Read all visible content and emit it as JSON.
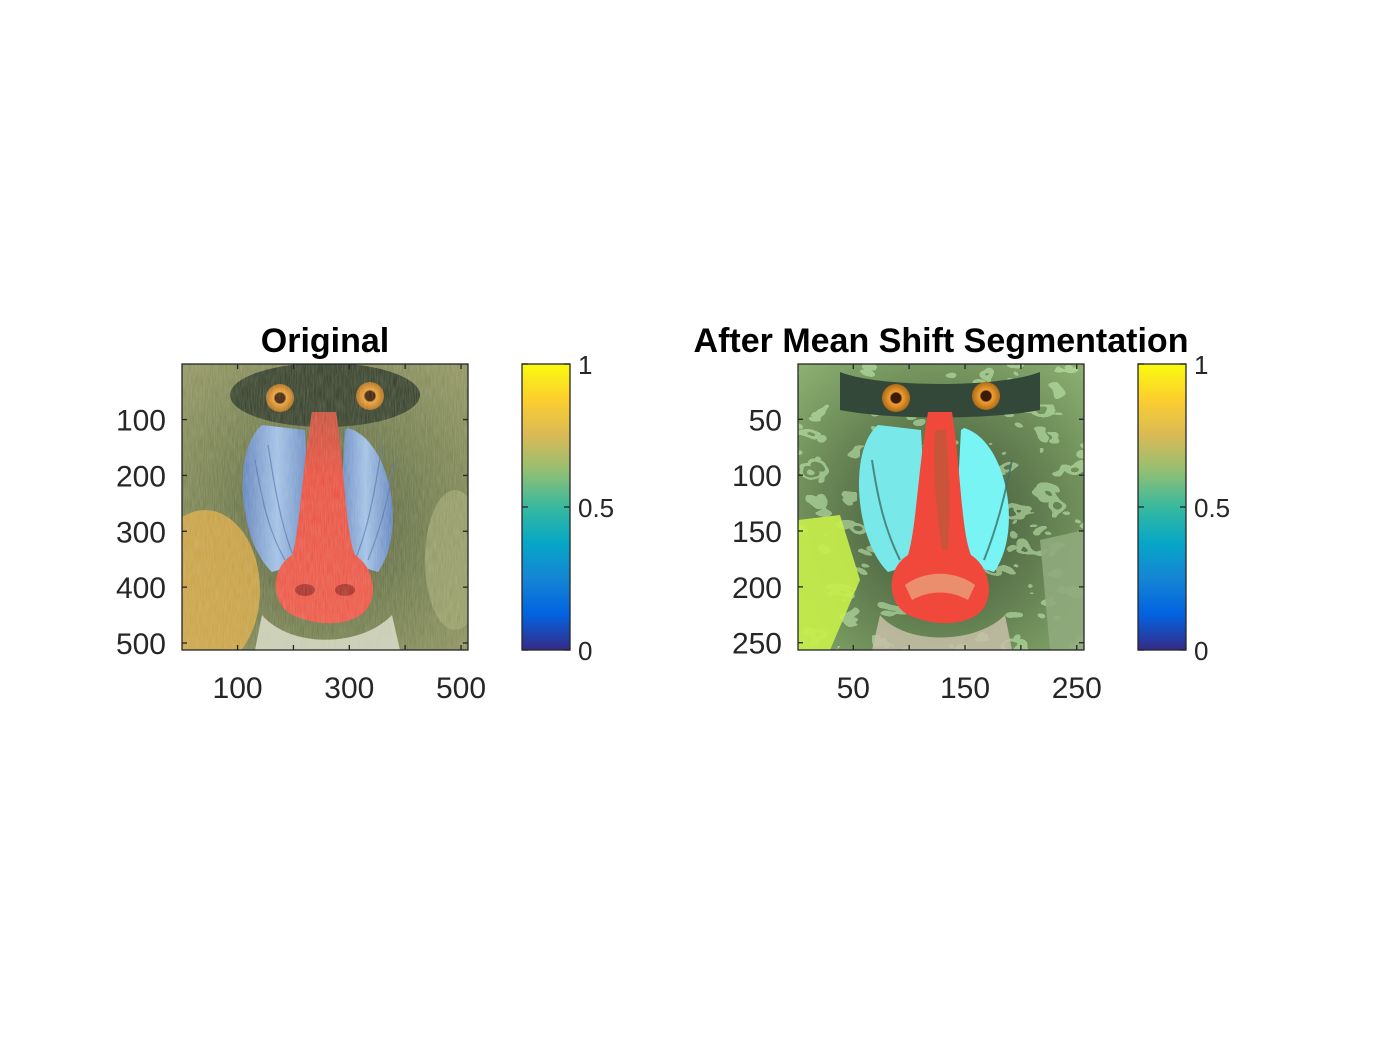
{
  "figure": {
    "background": "#ffffff"
  },
  "chart_data": [
    {
      "type": "heatmap",
      "title": "Original",
      "image": "mandrill",
      "xlim": [
        1,
        512
      ],
      "ylim": [
        1,
        512
      ],
      "y_reversed": true,
      "x_ticks": [
        100,
        200,
        300,
        400,
        500
      ],
      "x_tick_labels": [
        "100",
        "",
        "300",
        "",
        "500"
      ],
      "y_ticks": [
        100,
        200,
        300,
        400,
        500
      ],
      "y_tick_labels": [
        "100",
        "200",
        "300",
        "400",
        "500"
      ],
      "colorbar": {
        "colormap": "parula",
        "range": [
          0,
          1
        ],
        "ticks": [
          0,
          0.5,
          1
        ],
        "tick_labels": [
          "0",
          "0.5",
          "1"
        ]
      }
    },
    {
      "type": "heatmap",
      "title": "After Mean Shift Segmentation",
      "image": "mandrill-segmented",
      "xlim": [
        1,
        256
      ],
      "ylim": [
        1,
        256
      ],
      "y_reversed": true,
      "x_ticks": [
        50,
        100,
        150,
        200,
        250
      ],
      "x_tick_labels": [
        "50",
        "",
        "150",
        "",
        "250"
      ],
      "y_ticks": [
        50,
        100,
        150,
        200,
        250
      ],
      "y_tick_labels": [
        "50",
        "100",
        "150",
        "200",
        "250"
      ],
      "colorbar": {
        "colormap": "parula",
        "range": [
          0,
          1
        ],
        "ticks": [
          0,
          0.5,
          1
        ],
        "tick_labels": [
          "0",
          "0.5",
          "1"
        ]
      }
    }
  ],
  "colors": {
    "parula": [
      "#352a87",
      "#0363e1",
      "#1485d4",
      "#06a7c6",
      "#38b99e",
      "#92bf73",
      "#d9ba56",
      "#fcce2e",
      "#f9fb0e"
    ],
    "fur_dark": "#3f4a2c",
    "fur_olive": "#7d8a52",
    "fur_light": "#a2a87c",
    "nose_red": "#e8473c",
    "cheek_blue": "#7fa6d9",
    "eye_orange": "#e08a1e",
    "seg_fur_dark": "#374a36",
    "seg_fur_green": "#7fa06a",
    "seg_fur_bright": "#9ee07a",
    "seg_nose_red": "#f0493c",
    "seg_cheek_cyan": "#78f4f4",
    "seg_yellow_green": "#c8f04a"
  }
}
